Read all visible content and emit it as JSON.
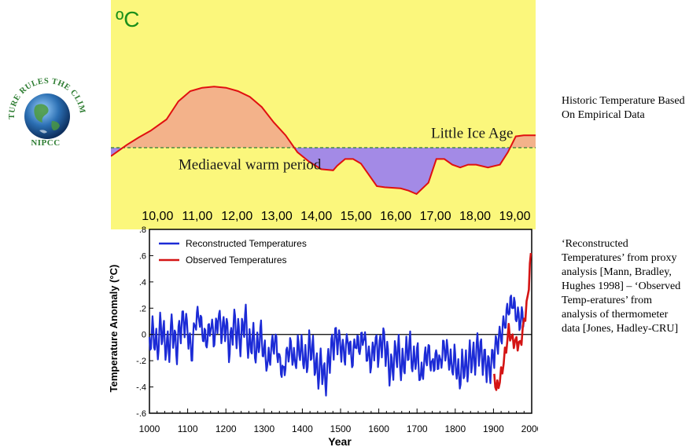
{
  "logo": {
    "arc_text": "NATURE RULES THE CLIMATE",
    "label": "NIPCC",
    "colors": {
      "text": "#2e7d32",
      "globe": "#2b6fb3"
    }
  },
  "captions": {
    "top": "Historic Temperature Based On Empirical Data",
    "bottom": "‘Reconstructed Temperatures’ from proxy analysis [Mann, Bradley, Hughes 1998] – ‘Observed Temp-eratures’ from analysis of thermometer data [Jones, Hadley-CRU]"
  },
  "chart_data": [
    {
      "type": "area",
      "unit_label": "ºC",
      "x_tick_labels": [
        "10,00",
        "11,00",
        "12,00",
        "13,00",
        "14,00",
        "15,00",
        "16,00",
        "17,00",
        "18,00",
        "19,00"
      ],
      "x_ticks": [
        1000,
        1100,
        1200,
        1300,
        1400,
        1500,
        1600,
        1700,
        1800,
        1900
      ],
      "xlim": [
        930,
        2000
      ],
      "ylim": [
        -1.2,
        1.2
      ],
      "baseline": 0,
      "annotations": [
        {
          "text": "Mediaeval warm period",
          "x": 1280,
          "y": -0.3
        },
        {
          "text": "Little Ice Age",
          "x": 1840,
          "y": 0.26
        }
      ],
      "series": [
        {
          "x": [
            930,
            970,
            1000,
            1030,
            1070,
            1100,
            1130,
            1160,
            1190,
            1220,
            1250,
            1280,
            1310,
            1340,
            1370,
            1400,
            1430,
            1460,
            1490,
            1500,
            1520,
            1540,
            1560,
            1580,
            1600,
            1620,
            1660,
            1680,
            1700,
            1730,
            1750,
            1770,
            1790,
            1810,
            1830,
            1850,
            1880,
            1910,
            1930,
            1950,
            1970,
            2000
          ],
          "y": [
            -0.15,
            0.05,
            0.18,
            0.3,
            0.5,
            0.82,
            1.0,
            1.06,
            1.08,
            1.06,
            1.0,
            0.9,
            0.72,
            0.45,
            0.22,
            -0.08,
            -0.25,
            -0.38,
            -0.4,
            -0.32,
            -0.2,
            -0.2,
            -0.28,
            -0.48,
            -0.68,
            -0.7,
            -0.72,
            -0.76,
            -0.82,
            -0.62,
            -0.2,
            -0.2,
            -0.3,
            -0.35,
            -0.3,
            -0.3,
            -0.35,
            -0.3,
            -0.08,
            0.2,
            0.22,
            0.22
          ]
        }
      ],
      "colors": {
        "background": "#fbf77c",
        "warm": "#f3b28a",
        "cold": "#a38ae6",
        "line": "#e01010",
        "baseline": "#2e7d32",
        "unit": "#1a8f1a"
      }
    },
    {
      "type": "line",
      "xlabel": "Year",
      "ylabel": "Temperature Anomaly (°C)",
      "xlim": [
        1000,
        2000
      ],
      "ylim": [
        -0.6,
        0.8
      ],
      "x_ticks": [
        1000,
        1100,
        1200,
        1300,
        1400,
        1500,
        1600,
        1700,
        1800,
        1900,
        2000
      ],
      "y_ticks": [
        -0.6,
        -0.4,
        -0.2,
        0,
        0.2,
        0.4,
        0.6,
        0.8
      ],
      "y_tick_labels": [
        "-.6",
        "-.4",
        "-.2",
        "0",
        ".2",
        ".4",
        ".6",
        ".8"
      ],
      "legend_position": "top-left",
      "grid": false,
      "series": [
        {
          "name": "Reconstructed Temperatures",
          "color": "#1c2bd6",
          "x": [
            1000,
            1010,
            1020,
            1030,
            1040,
            1050,
            1060,
            1070,
            1080,
            1090,
            1100,
            1110,
            1120,
            1130,
            1140,
            1150,
            1160,
            1170,
            1180,
            1190,
            1200,
            1210,
            1220,
            1230,
            1240,
            1250,
            1260,
            1270,
            1280,
            1290,
            1300,
            1310,
            1320,
            1330,
            1340,
            1350,
            1360,
            1370,
            1380,
            1390,
            1400,
            1410,
            1420,
            1430,
            1440,
            1450,
            1460,
            1470,
            1480,
            1490,
            1500,
            1510,
            1520,
            1530,
            1540,
            1550,
            1560,
            1570,
            1580,
            1590,
            1600,
            1610,
            1620,
            1630,
            1640,
            1650,
            1660,
            1670,
            1680,
            1690,
            1700,
            1710,
            1720,
            1730,
            1740,
            1750,
            1760,
            1770,
            1780,
            1790,
            1800,
            1810,
            1820,
            1830,
            1840,
            1850,
            1860,
            1870,
            1880,
            1890,
            1900,
            1910,
            1920,
            1930,
            1940,
            1950,
            1960,
            1970,
            1980
          ],
          "values": [
            -0.02,
            0.05,
            -0.1,
            0.08,
            -0.05,
            -0.12,
            0.06,
            -0.15,
            0.02,
            0.08,
            0.0,
            -0.2,
            0.06,
            0.1,
            -0.05,
            -0.1,
            0.03,
            -0.08,
            0.1,
            -0.02,
            0.05,
            -0.15,
            0.08,
            0.0,
            -0.05,
            0.15,
            -0.1,
            0.0,
            -0.12,
            0.05,
            -0.1,
            -0.18,
            -0.05,
            0.0,
            -0.15,
            -0.25,
            -0.1,
            -0.05,
            -0.18,
            -0.05,
            -0.1,
            -0.2,
            -0.05,
            -0.15,
            -0.3,
            -0.22,
            -0.38,
            -0.2,
            -0.1,
            -0.05,
            -0.12,
            -0.2,
            -0.08,
            -0.25,
            -0.1,
            -0.15,
            -0.05,
            -0.2,
            -0.25,
            -0.1,
            -0.18,
            -0.05,
            -0.15,
            -0.3,
            -0.2,
            -0.1,
            -0.25,
            -0.15,
            -0.05,
            -0.2,
            -0.1,
            -0.3,
            -0.15,
            -0.08,
            -0.2,
            -0.12,
            -0.18,
            -0.05,
            -0.1,
            -0.2,
            -0.15,
            -0.32,
            -0.2,
            -0.25,
            -0.15,
            -0.2,
            -0.1,
            -0.18,
            -0.25,
            -0.3,
            -0.2,
            -0.1,
            -0.05,
            0.05,
            0.15,
            0.2,
            0.1,
            0.05,
            0.12
          ]
        },
        {
          "name": "Observed Temperatures",
          "color": "#d41414",
          "x": [
            1902,
            1910,
            1920,
            1930,
            1940,
            1950,
            1960,
            1970,
            1980,
            1990,
            1998
          ],
          "values": [
            -0.3,
            -0.35,
            -0.25,
            -0.1,
            0.08,
            0.0,
            -0.02,
            -0.05,
            0.12,
            0.3,
            0.62
          ]
        }
      ],
      "colors": {
        "axis": "#000000",
        "zero_line": "#000000"
      }
    }
  ]
}
